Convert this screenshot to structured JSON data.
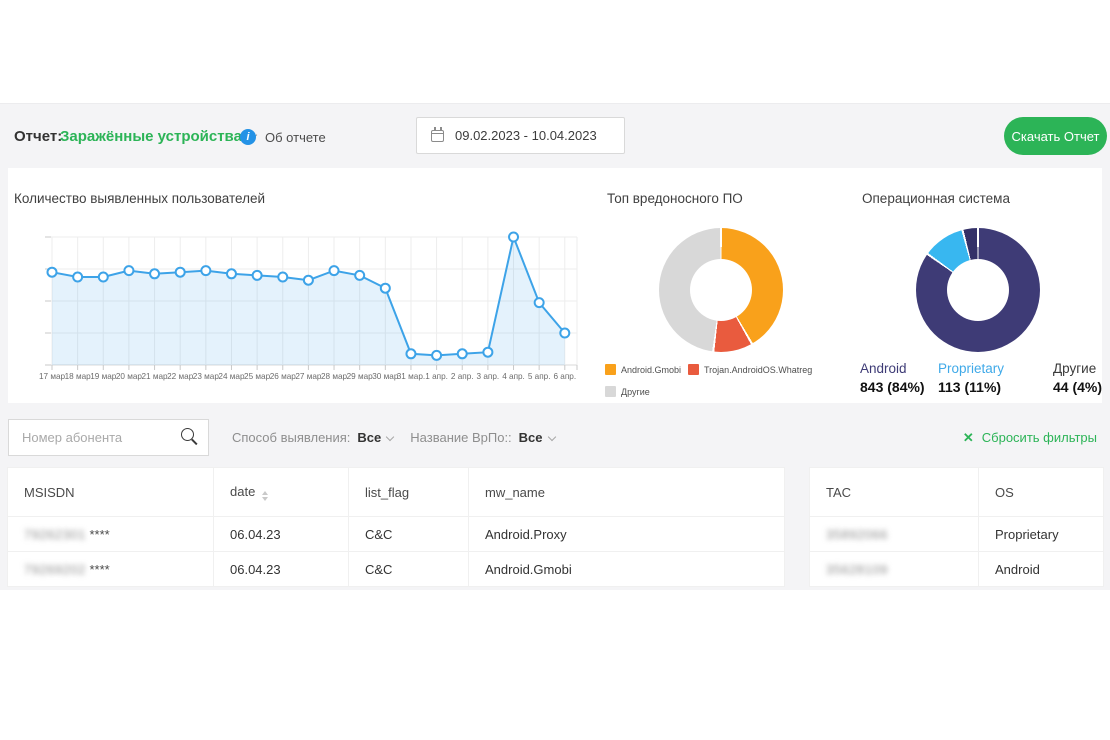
{
  "header": {
    "report_label": "Отчет:",
    "report_name": "Заражённые устройства",
    "about_label": "Об отчете",
    "date_range": "09.02.2023 - 10.04.2023",
    "download_label": "Скачать Отчет"
  },
  "icons": {
    "info_glyph": "i",
    "reset_glyph": "✕"
  },
  "colors": {
    "green": "#2CB457",
    "info_blue": "#2492E6",
    "content_bg": "#f4f4f6",
    "line_blue": "#3DA3E8"
  },
  "chart_data": [
    {
      "type": "line",
      "title": "Количество выявленных пользователей",
      "x": [
        "17 мар",
        "18 мар",
        "19 мар",
        "20 мар",
        "21 мар",
        "22 мар",
        "23 мар",
        "24 мар",
        "25 мар",
        "26 мар",
        "27 мар",
        "28 мар",
        "29 мар",
        "30 мар",
        "31 мар.",
        "1 апр.",
        "2 апр.",
        "3 апр.",
        "4 апр.",
        "5 апр.",
        "6 апр."
      ],
      "values": [
        5.8,
        5.5,
        5.5,
        5.9,
        5.7,
        5.8,
        5.9,
        5.7,
        5.6,
        5.5,
        5.3,
        5.9,
        5.6,
        4.8,
        0.7,
        0.6,
        0.7,
        0.8,
        8.0,
        3.9,
        2.0
      ],
      "ylim": [
        0,
        8
      ],
      "y_axis_labels_visible": false,
      "grid": true,
      "line_color": "#3DA3E8",
      "fill_color": "rgba(61,163,232,0.14)",
      "point_style": "circle-white"
    },
    {
      "type": "donut",
      "title": "Топ вредоносного ПО",
      "legend_position": "bottom-left",
      "slices": [
        {
          "label": "Android.Gmobi",
          "pct": 41.7,
          "color": "#F9A11B"
        },
        {
          "label": "Trojan.AndroidOS.Whatreg",
          "pct": 10.3,
          "color": "#E95B3E"
        },
        {
          "label": "Другие",
          "pct": 48.0,
          "color": "#D8D8D8"
        }
      ]
    },
    {
      "type": "donut",
      "title": "Операционная система",
      "legend_position": "bottom-stats",
      "slices": [
        {
          "label": "Android",
          "value": 843,
          "pct": 84,
          "value_text": "843 (84%)",
          "color": "#3E3B76",
          "label_color": "#3E3B76"
        },
        {
          "label": "Proprietary",
          "value": 113,
          "pct": 11,
          "value_text": "113 (11%)",
          "color": "#38B7F0",
          "label_color": "#3FA9E8"
        },
        {
          "label": "Другие",
          "value": 44,
          "pct": 4,
          "value_text": "44 (4%)",
          "color": "#343168",
          "label_color": "#3a3a3a"
        }
      ]
    }
  ],
  "filters": {
    "search_placeholder": "Номер абонента",
    "detection_label": "Способ выявления:",
    "detection_value": "Все",
    "malware_label": "Название ВрПо::",
    "malware_value": "Все",
    "reset_label": "Сбросить фильтры"
  },
  "table": {
    "columns": [
      {
        "key": "msisdn",
        "label": "MSISDN",
        "sortable": false
      },
      {
        "key": "date",
        "label": "date",
        "sortable": true
      },
      {
        "key": "list_flag",
        "label": "list_flag",
        "sortable": false
      },
      {
        "key": "mw_name",
        "label": "mw_name",
        "sortable": false
      },
      {
        "key": "tac",
        "label": "TAC",
        "sortable": false
      },
      {
        "key": "os",
        "label": "OS",
        "sortable": false
      }
    ],
    "rows": [
      {
        "msisdn_masked": "79262301",
        "msisdn_suffix": "****",
        "date": "06.04.23",
        "list_flag": "C&C",
        "mw_name": "Android.Proxy",
        "tac_masked": "35892066",
        "os": "Proprietary"
      },
      {
        "msisdn_masked": "79269202",
        "msisdn_suffix": "****",
        "date": "06.04.23",
        "list_flag": "C&C",
        "mw_name": "Android.Gmobi",
        "tac_masked": "35628109",
        "os": "Android"
      }
    ]
  }
}
